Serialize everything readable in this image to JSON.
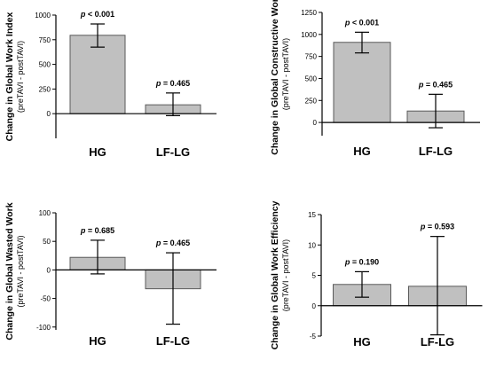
{
  "colors": {
    "bar_fill": "#c0c0c0",
    "bar_stroke": "#5a5a5a",
    "axis": "#000000"
  },
  "chart_data": [
    {
      "type": "bar",
      "title": "",
      "ylabel": "Change in Global Work Index",
      "ylabel_sub": "(preTAVI - postTAVI)",
      "categories": [
        "HG",
        "LF-LG"
      ],
      "values": [
        795,
        90
      ],
      "error_low": [
        675,
        -20
      ],
      "error_high": [
        910,
        210
      ],
      "annotations": [
        "p < 0.001",
        "p = 0.465"
      ],
      "ylim": [
        -250,
        1000
      ],
      "yticks": [
        0,
        250,
        500,
        750,
        1000
      ],
      "grid": false,
      "legend": "none"
    },
    {
      "type": "bar",
      "title": "",
      "ylabel": "Change in Global Constructive Work",
      "ylabel_sub": "(preTAVI - postTAVI)",
      "categories": [
        "HG",
        "LF-LG"
      ],
      "values": [
        910,
        130
      ],
      "error_low": [
        790,
        -60
      ],
      "error_high": [
        1025,
        320
      ],
      "annotations": [
        "p < 0.001",
        "p = 0.465"
      ],
      "ylim": [
        -150,
        1250
      ],
      "yticks": [
        0,
        250,
        500,
        750,
        1000,
        1250
      ],
      "grid": false,
      "legend": "none"
    },
    {
      "type": "bar",
      "title": "",
      "ylabel": "Change in Global Wasted Work",
      "ylabel_sub": "(preTAVI - postTAVI)",
      "categories": [
        "HG",
        "LF-LG"
      ],
      "values": [
        22,
        -33
      ],
      "error_low": [
        -7,
        -95
      ],
      "error_high": [
        52,
        30
      ],
      "annotations": [
        "p = 0.685",
        "p = 0.465"
      ],
      "ylim": [
        -105,
        100
      ],
      "yticks": [
        -100,
        -50,
        0,
        50,
        100
      ],
      "grid": false,
      "legend": "none"
    },
    {
      "type": "bar",
      "title": "",
      "ylabel": "Change in Global Work Efficiency",
      "ylabel_sub": "(preTAVI - postTAVI)",
      "categories": [
        "HG",
        "LF-LG"
      ],
      "values": [
        3.5,
        3.2
      ],
      "error_low": [
        1.4,
        -4.8
      ],
      "error_high": [
        5.6,
        11.4
      ],
      "annotations": [
        "p = 0.190",
        "p = 0.593"
      ],
      "ylim": [
        -5,
        15
      ],
      "yticks": [
        -5,
        0,
        5,
        10,
        15
      ],
      "grid": false,
      "legend": "none"
    }
  ]
}
